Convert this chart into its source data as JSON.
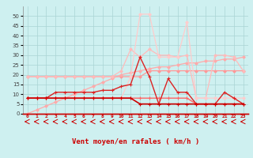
{
  "xlabel": "Vent moyen/en rafales ( km/h )",
  "background_color": "#cef0f0",
  "grid_color": "#aad4d4",
  "x": [
    0,
    1,
    2,
    3,
    4,
    5,
    6,
    7,
    8,
    9,
    10,
    11,
    12,
    13,
    14,
    15,
    16,
    17,
    18,
    19,
    20,
    21,
    22,
    23
  ],
  "series": [
    {
      "color": "#ff9999",
      "linewidth": 0.9,
      "marker": "D",
      "markersize": 1.8,
      "values": [
        19,
        19,
        19,
        19,
        19,
        19,
        19,
        19,
        19,
        19,
        19,
        19,
        19,
        22,
        22,
        22,
        22,
        22,
        22,
        22,
        22,
        22,
        22,
        22
      ]
    },
    {
      "color": "#ffaaaa",
      "linewidth": 0.9,
      "marker": "D",
      "markersize": 1.8,
      "values": [
        0,
        2,
        4,
        6,
        8,
        10,
        12,
        14,
        16,
        18,
        20,
        21,
        22,
        23,
        24,
        24,
        25,
        26,
        26,
        27,
        27,
        28,
        28,
        29
      ]
    },
    {
      "color": "#ffbbbb",
      "linewidth": 0.9,
      "marker": "D",
      "markersize": 1.8,
      "values": [
        19,
        19,
        19,
        19,
        19,
        19,
        19,
        19,
        19,
        19,
        22,
        33,
        29,
        33,
        30,
        30,
        29,
        30,
        8,
        8,
        30,
        30,
        29,
        22
      ]
    },
    {
      "color": "#ffcccc",
      "linewidth": 0.9,
      "marker": "D",
      "markersize": 1.8,
      "values": [
        8,
        8,
        8,
        8,
        8,
        8,
        8,
        8,
        8,
        8,
        8,
        19,
        51,
        51,
        29,
        29,
        29,
        47,
        8,
        8,
        8,
        8,
        8,
        8
      ]
    },
    {
      "color": "#ff6666",
      "linewidth": 1.0,
      "marker": "+",
      "markersize": 3,
      "values": [
        8,
        8,
        8,
        8,
        8,
        8,
        8,
        8,
        8,
        8,
        8,
        8,
        8,
        8,
        8,
        8,
        8,
        8,
        5,
        5,
        5,
        5,
        5,
        5
      ]
    },
    {
      "color": "#dd2222",
      "linewidth": 1.0,
      "marker": "+",
      "markersize": 3,
      "values": [
        8,
        8,
        8,
        11,
        11,
        11,
        11,
        11,
        12,
        12,
        14,
        15,
        29,
        19,
        5,
        18,
        11,
        11,
        5,
        5,
        5,
        11,
        8,
        5
      ]
    },
    {
      "color": "#cc0000",
      "linewidth": 1.2,
      "marker": "+",
      "markersize": 3,
      "values": [
        8,
        8,
        8,
        8,
        8,
        8,
        8,
        8,
        8,
        8,
        8,
        8,
        5,
        5,
        5,
        5,
        5,
        5,
        5,
        5,
        5,
        5,
        5,
        5
      ]
    }
  ],
  "ylim": [
    0,
    55
  ],
  "yticks": [
    0,
    5,
    10,
    15,
    20,
    25,
    30,
    35,
    40,
    45,
    50
  ],
  "xlim": [
    -0.5,
    23.5
  ]
}
